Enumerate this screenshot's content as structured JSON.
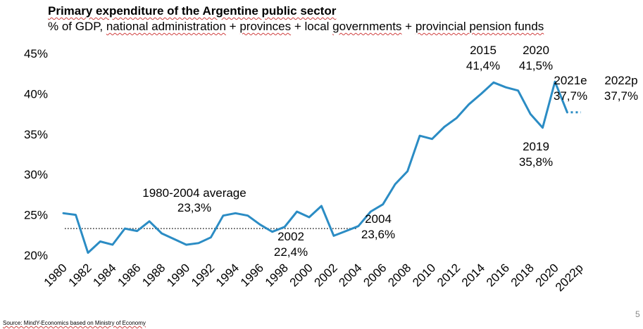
{
  "page_number": "5",
  "source": "Source: MindY-Economics based on Ministry of Economy",
  "chart_data": {
    "type": "line",
    "title": "Primary expenditure of the Argentine public sector",
    "subtitle_parts": [
      "% of GDP, ",
      "national administration",
      " + ",
      "provinces",
      " + local ",
      "governments",
      " + ",
      "provincial pension funds"
    ],
    "ylim": [
      20,
      45
    ],
    "yticks": [
      20,
      25,
      30,
      35,
      40,
      45
    ],
    "ytick_labels": [
      "20%",
      "25%",
      "30%",
      "35%",
      "40%",
      "45%"
    ],
    "xlabel": "",
    "ylabel": "",
    "x": [
      1980,
      1981,
      1982,
      1983,
      1984,
      1985,
      1986,
      1987,
      1988,
      1989,
      1990,
      1991,
      1992,
      1993,
      1994,
      1995,
      1996,
      1997,
      1998,
      1999,
      2000,
      2001,
      2002,
      2003,
      2004,
      2005,
      2006,
      2007,
      2008,
      2009,
      2010,
      2011,
      2012,
      2013,
      2014,
      2015,
      2016,
      2017,
      2018,
      2019,
      2020,
      2021
    ],
    "series": [
      {
        "name": "Primary expenditure (% of GDP)",
        "color": "#2b8cc4",
        "values": [
          25.2,
          25.0,
          20.3,
          21.7,
          21.3,
          23.3,
          23.0,
          24.2,
          22.7,
          22.0,
          21.3,
          21.5,
          22.2,
          24.9,
          25.2,
          24.9,
          23.8,
          22.9,
          23.5,
          25.4,
          24.7,
          26.1,
          22.4,
          23.0,
          23.6,
          25.4,
          26.3,
          28.8,
          30.4,
          34.8,
          34.4,
          35.9,
          37.0,
          38.7,
          40.0,
          41.4,
          40.8,
          40.4,
          37.5,
          35.8,
          41.5,
          37.7
        ]
      },
      {
        "name": "2022 projection",
        "color": "#2b8cc4",
        "style": "dotted",
        "x": [
          2021,
          2022
        ],
        "values": [
          37.7,
          37.7
        ]
      }
    ],
    "reference_line": {
      "label": "1980-2004 average",
      "value": 23.3,
      "x_start": 1980,
      "x_end": 2004,
      "color": "#333333"
    },
    "xtick_labels": [
      "1980",
      "1982",
      "1984",
      "1986",
      "1988",
      "1990",
      "1992",
      "1994",
      "1996",
      "1998",
      "2000",
      "2002",
      "2004",
      "2006",
      "2008",
      "2010",
      "2012",
      "2014",
      "2016",
      "2018",
      "2020",
      "2022p"
    ],
    "xtick_years": [
      1980,
      1982,
      1984,
      1986,
      1988,
      1990,
      1992,
      1994,
      1996,
      1998,
      2000,
      2002,
      2004,
      2006,
      2008,
      2010,
      2012,
      2014,
      2016,
      2018,
      2020,
      2022
    ],
    "annotations": [
      {
        "key": "avg",
        "line1": "1980-2004 average",
        "line2": "23,3%"
      },
      {
        "key": "y2002",
        "line1": "2002",
        "line2": "22,4%"
      },
      {
        "key": "y2004",
        "line1": "2004",
        "line2": "23,6%"
      },
      {
        "key": "y2015",
        "line1": "2015",
        "line2": "41,4%"
      },
      {
        "key": "y2020",
        "line1": "2020",
        "line2": "41,5%"
      },
      {
        "key": "y2019",
        "line1": "2019",
        "line2": "35,8%"
      },
      {
        "key": "y2021",
        "line1": "2021e",
        "line2": "37,7%"
      },
      {
        "key": "y2022",
        "line1": "2022p",
        "line2": "37,7%"
      }
    ]
  }
}
